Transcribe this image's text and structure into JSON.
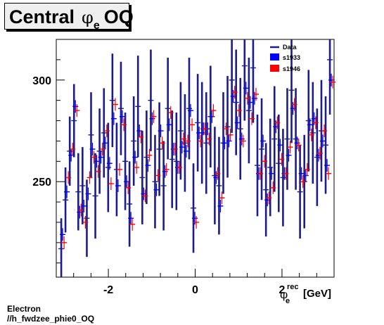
{
  "title": {
    "main": "Central",
    "symbol": "φ",
    "subscript": "e",
    "suffix": "OQ"
  },
  "footer": {
    "line1": "Electron",
    "line2": "//h_fwdzee_phie0_OQ"
  },
  "chart_data": {
    "type": "scatter",
    "xlabel": {
      "symbol": "φ",
      "sup": "rec",
      "sub": "e",
      "unit": "[GeV]"
    },
    "xlim": [
      -3.2,
      3.2
    ],
    "ylim": [
      203,
      320
    ],
    "xticks": [
      "-2",
      "0",
      "2"
    ],
    "yticks": [
      "250",
      "300"
    ],
    "legend": {
      "position": "top-right",
      "entries": [
        "Data",
        "s1933",
        "s1946"
      ]
    },
    "colors": {
      "data": "#1c1c8c",
      "s1933": "#0000ff",
      "s1946": "#ff0000"
    },
    "series": [
      {
        "name": "Data",
        "x": [
          -3.085,
          -2.988,
          -2.889,
          -2.791,
          -2.693,
          -2.595,
          -2.496,
          -2.398,
          -2.3,
          -2.202,
          -2.102,
          -2.004,
          -1.906,
          -1.808,
          -1.71,
          -1.611,
          -1.513,
          -1.415,
          -1.317,
          -1.218,
          -1.12,
          -1.022,
          -0.924,
          -0.825,
          -0.727,
          -0.629,
          -0.531,
          -0.432,
          -0.334,
          -0.236,
          -0.138,
          -0.04,
          0.059,
          0.157,
          0.255,
          0.354,
          0.452,
          0.55,
          0.648,
          0.746,
          0.845,
          0.943,
          1.041,
          1.139,
          1.238,
          1.336,
          1.434,
          1.532,
          1.631,
          1.729,
          1.827,
          1.925,
          2.024,
          2.122,
          2.22,
          2.318,
          2.416,
          2.515,
          2.613,
          2.711,
          2.809,
          2.908,
          3.006,
          3.104
        ],
        "y": [
          217,
          241,
          265,
          280,
          245,
          248,
          232,
          273,
          243,
          265,
          274,
          257,
          290,
          256,
          286,
          260,
          239,
          270,
          287,
          252,
          262,
          290,
          250,
          266,
          248,
          286,
          261,
          260,
          275,
          269,
          286,
          237,
          279,
          274,
          269,
          282,
          253,
          248,
          269,
          277,
          300,
          289,
          276,
          307,
          285,
          306,
          258,
          266,
          246,
          257,
          271,
          259,
          252,
          271,
          295,
          271,
          245,
          250,
          280,
          274,
          262,
          275,
          268,
          310
        ],
        "err": [
          15,
          16,
          17,
          18,
          19,
          19,
          19,
          21,
          21,
          21,
          22,
          22,
          23,
          23,
          23,
          24,
          21,
          22,
          25,
          23,
          23,
          25,
          23,
          23,
          22,
          25,
          24,
          24,
          24,
          24,
          25,
          22,
          24,
          25,
          25,
          25,
          24,
          24,
          25,
          25,
          26,
          26,
          25,
          27,
          26,
          27,
          25,
          25,
          23,
          24,
          26,
          24,
          24,
          25,
          26,
          25,
          23,
          23,
          25,
          25,
          24,
          25,
          24,
          27
        ]
      },
      {
        "name": "s1933",
        "x": [
          -3.053,
          -2.955,
          -2.856,
          -2.758,
          -2.66,
          -2.562,
          -2.463,
          -2.365,
          -2.267,
          -2.169,
          -2.069,
          -1.971,
          -1.873,
          -1.775,
          -1.677,
          -1.578,
          -1.48,
          -1.382,
          -1.284,
          -1.185,
          -1.087,
          -0.989,
          -0.891,
          -0.792,
          -0.694,
          -0.596,
          -0.498,
          -0.399,
          -0.301,
          -0.203,
          -0.105,
          -0.007,
          0.092,
          0.19,
          0.288,
          0.387,
          0.485,
          0.583,
          0.681,
          0.779,
          0.878,
          0.976,
          1.074,
          1.172,
          1.271,
          1.369,
          1.467,
          1.565,
          1.664,
          1.762,
          1.86,
          1.958,
          2.057,
          2.155,
          2.253,
          2.351,
          2.449,
          2.548,
          2.646,
          2.744,
          2.842,
          2.941,
          3.039,
          3.137
        ],
        "y": [
          224,
          245,
          263,
          287,
          235,
          238,
          244,
          266,
          260,
          262,
          269,
          259,
          281,
          248,
          282,
          250,
          232,
          262,
          275,
          244,
          258,
          281,
          246,
          275,
          255,
          278,
          266,
          257,
          267,
          265,
          285,
          232,
          274,
          276,
          276,
          282,
          252,
          238,
          269,
          270,
          292,
          279,
          271,
          296,
          289,
          291,
          254,
          270,
          241,
          254,
          277,
          268,
          254,
          263,
          286,
          269,
          254,
          253,
          278,
          281,
          263,
          270,
          258,
          300
        ]
      },
      {
        "name": "s1946",
        "x": [
          -3.02,
          -2.922,
          -2.823,
          -2.725,
          -2.627,
          -2.529,
          -2.43,
          -2.332,
          -2.234,
          -2.136,
          -2.036,
          -1.938,
          -1.84,
          -1.742,
          -1.644,
          -1.545,
          -1.447,
          -1.349,
          -1.251,
          -1.152,
          -1.054,
          -0.956,
          -0.858,
          -0.759,
          -0.661,
          -0.563,
          -0.465,
          -0.366,
          -0.268,
          -0.17,
          -0.072,
          0.026,
          0.125,
          0.223,
          0.321,
          0.42,
          0.518,
          0.616,
          0.714,
          0.812,
          0.911,
          1.009,
          1.107,
          1.205,
          1.304,
          1.402,
          1.5,
          1.598,
          1.697,
          1.795,
          1.893,
          1.991,
          2.09,
          2.188,
          2.286,
          2.384,
          2.482,
          2.581,
          2.679,
          2.777,
          2.875,
          2.974,
          3.072,
          3.17
        ],
        "y": [
          220,
          252,
          266,
          285,
          236,
          230,
          252,
          262,
          255,
          266,
          275,
          249,
          288,
          256,
          278,
          247,
          229,
          257,
          272,
          243,
          263,
          282,
          253,
          269,
          256,
          284,
          266,
          257,
          271,
          270,
          278,
          230,
          270,
          276,
          271,
          285,
          254,
          242,
          276,
          273,
          294,
          285,
          270,
          291,
          281,
          293,
          254,
          260,
          242,
          247,
          279,
          261,
          254,
          267,
          288,
          268,
          250,
          256,
          273,
          279,
          264,
          275,
          254,
          299
        ]
      }
    ]
  }
}
